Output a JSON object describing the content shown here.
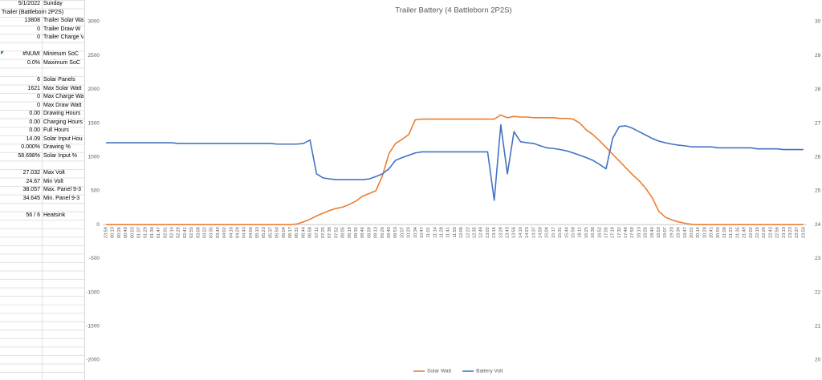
{
  "sheet": {
    "rows": [
      [
        "5/1/2022",
        "Sunday"
      ],
      [
        "Trailer (Battleborn 2P2S)"
      ],
      [
        "13808",
        "Trailer Solar Wa"
      ],
      [
        "0",
        "Trailer Draw W"
      ],
      [
        "0",
        "Trailer Charge V"
      ],
      null,
      [
        "#NUM!",
        "Minimum SoC"
      ],
      [
        "0.0%",
        "Maximum SoC"
      ],
      null,
      [
        "6",
        "Solar Panels"
      ],
      [
        "1621",
        "Max Solar Watt"
      ],
      [
        "0",
        "Max Charge Wa"
      ],
      [
        "0",
        "Max Draw Watt"
      ],
      [
        "0.00",
        "Drawing Hours"
      ],
      [
        "0.00",
        "Charging Hours"
      ],
      [
        "0.00",
        "Full Hours"
      ],
      [
        "14.09",
        "Solar Input Hou"
      ],
      [
        "0.000%",
        "Drawing %"
      ],
      [
        "58.698%",
        "Solar Input %"
      ],
      null,
      [
        "27.032",
        "Max Volt"
      ],
      [
        "24.67",
        "Min Volt"
      ],
      [
        "38.057",
        "Max. Panel 9-3"
      ],
      [
        "34.645",
        "Min. Panel 9-3"
      ],
      null,
      [
        "56 / 6",
        "Heatsink"
      ]
    ]
  },
  "chart_data": {
    "type": "line",
    "title": "Trailer Battery (4 Battleborn 2P2S)",
    "categories": [
      "23:59",
      "00:13",
      "00:26",
      "00:40",
      "00:53",
      "01:07",
      "01:20",
      "01:34",
      "01:47",
      "02:01",
      "02:14",
      "02:28",
      "02:41",
      "02:55",
      "03:08",
      "03:22",
      "03:35",
      "03:49",
      "04:02",
      "04:16",
      "04:29",
      "04:43",
      "04:56",
      "05:10",
      "05:23",
      "05:37",
      "05:50",
      "06:04",
      "06:17",
      "06:31",
      "06:44",
      "06:58",
      "07:11",
      "07:25",
      "07:38",
      "07:52",
      "08:05",
      "08:19",
      "08:32",
      "08:46",
      "08:59",
      "09:13",
      "09:26",
      "09:40",
      "09:53",
      "10:07",
      "10:20",
      "10:34",
      "10:47",
      "11:01",
      "11:14",
      "11:28",
      "11:41",
      "11:55",
      "12:08",
      "12:22",
      "12:35",
      "12:49",
      "13:02",
      "13:16",
      "13:29",
      "13:43",
      "13:56",
      "14:10",
      "14:23",
      "14:37",
      "14:50",
      "15:04",
      "15:17",
      "15:31",
      "15:44",
      "15:58",
      "16:11",
      "16:25",
      "16:38",
      "16:52",
      "17:05",
      "17:19",
      "17:32",
      "17:46",
      "17:59",
      "18:13",
      "18:26",
      "18:40",
      "18:53",
      "19:07",
      "19:20",
      "19:34",
      "19:47",
      "20:01",
      "20:14",
      "20:28",
      "20:41",
      "20:55",
      "21:08",
      "21:22",
      "21:35",
      "21:49",
      "22:02",
      "22:16",
      "22:29",
      "22:43",
      "22:56",
      "23:10",
      "23:23",
      "23:37",
      "23:50"
    ],
    "series": [
      {
        "name": "Solar Watt",
        "color": "#ed7d31",
        "values": [
          0,
          0,
          0,
          0,
          0,
          0,
          0,
          0,
          0,
          0,
          0,
          0,
          0,
          0,
          0,
          0,
          0,
          0,
          0,
          0,
          0,
          0,
          0,
          0,
          0,
          0,
          0,
          0,
          0,
          10,
          40,
          80,
          130,
          170,
          210,
          240,
          260,
          300,
          350,
          420,
          460,
          500,
          720,
          1050,
          1200,
          1260,
          1330,
          1550,
          1560,
          1560,
          1560,
          1560,
          1560,
          1560,
          1560,
          1560,
          1560,
          1560,
          1560,
          1560,
          1620,
          1580,
          1600,
          1590,
          1590,
          1580,
          1580,
          1580,
          1580,
          1570,
          1570,
          1560,
          1500,
          1400,
          1330,
          1240,
          1140,
          1040,
          940,
          840,
          740,
          650,
          540,
          400,
          200,
          110,
          70,
          40,
          20,
          5,
          0,
          0,
          0,
          0,
          0,
          0,
          0,
          0,
          0,
          0,
          0,
          0,
          0,
          0,
          0,
          0,
          0
        ]
      },
      {
        "name": "Battery Volt",
        "color": "#4472c4",
        "axis": "y2",
        "values": [
          26.42,
          26.42,
          26.42,
          26.42,
          26.42,
          26.42,
          26.42,
          26.42,
          26.42,
          26.42,
          26.42,
          26.4,
          26.4,
          26.4,
          26.4,
          26.4,
          26.4,
          26.4,
          26.4,
          26.4,
          26.4,
          26.4,
          26.4,
          26.4,
          26.4,
          26.4,
          26.38,
          26.38,
          26.38,
          26.38,
          26.4,
          26.5,
          25.5,
          25.38,
          25.35,
          25.33,
          25.33,
          25.33,
          25.33,
          25.33,
          25.35,
          25.42,
          25.5,
          25.65,
          25.9,
          25.98,
          26.05,
          26.12,
          26.15,
          26.15,
          26.15,
          26.15,
          26.15,
          26.15,
          26.15,
          26.15,
          26.15,
          26.15,
          26.15,
          24.72,
          26.95,
          25.5,
          26.75,
          26.45,
          26.42,
          26.4,
          26.33,
          26.27,
          26.25,
          26.22,
          26.18,
          26.12,
          26.05,
          25.98,
          25.9,
          25.78,
          25.65,
          26.55,
          26.9,
          26.92,
          26.85,
          26.75,
          26.65,
          26.55,
          26.47,
          26.42,
          26.38,
          26.35,
          26.33,
          26.3,
          26.3,
          26.3,
          26.3,
          26.27,
          26.27,
          26.27,
          26.27,
          26.27,
          26.27,
          26.24,
          26.24,
          26.24,
          26.24,
          26.22,
          26.22,
          26.22,
          26.22
        ]
      }
    ],
    "ylim": [
      -2000,
      3000
    ],
    "yticks": [
      -2000,
      -1500,
      -1000,
      -500,
      0,
      500,
      1000,
      1500,
      2000,
      2500,
      3000
    ],
    "y2lim": [
      20,
      30
    ],
    "y2ticks": [
      20,
      21,
      22,
      23,
      24,
      25,
      26,
      27,
      28,
      29,
      30
    ],
    "grid": false,
    "legend": "bottom"
  }
}
